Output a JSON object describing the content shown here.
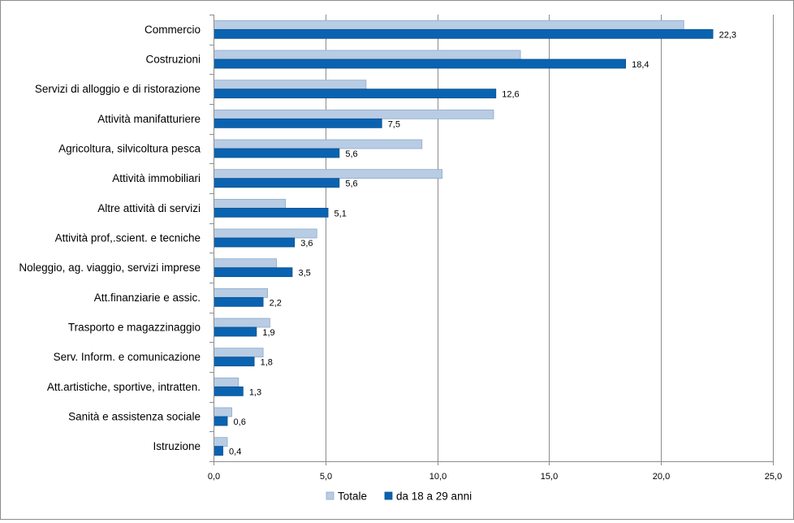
{
  "chart_data": {
    "type": "bar",
    "orientation": "horizontal",
    "categories": [
      "Commercio",
      "Costruzioni",
      "Servizi di alloggio e di ristorazione",
      "Attività manifatturiere",
      "Agricoltura, silvicoltura pesca",
      "Attività immobiliari",
      "Altre attività di servizi",
      "Attività prof,.scient. e tecniche",
      "Noleggio, ag. viaggio, servizi imprese",
      "Att.finanziarie e assic.",
      "Trasporto e magazzinaggio",
      "Serv. Inform. e comunicazione",
      "Att.artistiche, sportive, intratten.",
      "Sanità e assistenza sociale",
      "Istruzione"
    ],
    "series": [
      {
        "name": "Totale",
        "color": "#b8cce4",
        "stroke": "#8eaacb",
        "values": [
          21.0,
          13.7,
          6.8,
          12.5,
          9.3,
          10.2,
          3.2,
          4.6,
          2.8,
          2.4,
          2.5,
          2.2,
          1.1,
          0.8,
          0.6
        ]
      },
      {
        "name": "da 18 a 29 anni",
        "color": "#0a63b1",
        "stroke": "#084f8e",
        "values": [
          22.3,
          18.4,
          12.6,
          7.5,
          5.6,
          5.6,
          5.1,
          3.6,
          3.5,
          2.2,
          1.9,
          1.8,
          1.3,
          0.6,
          0.4
        ],
        "data_labels": [
          "22,3",
          "18,4",
          "12,6",
          "7,5",
          "5,6",
          "5,6",
          "5,1",
          "3,6",
          "3,5",
          "2,2",
          "1,9",
          "1,8",
          "1,3",
          "0,6",
          "0,4"
        ]
      }
    ],
    "x_ticks": [
      "0,0",
      "5,0",
      "10,0",
      "15,0",
      "20,0",
      "25,0"
    ],
    "xlim": [
      0,
      25
    ],
    "grid": "vertical",
    "legend_position": "bottom",
    "title": "",
    "xlabel": "",
    "ylabel": ""
  }
}
